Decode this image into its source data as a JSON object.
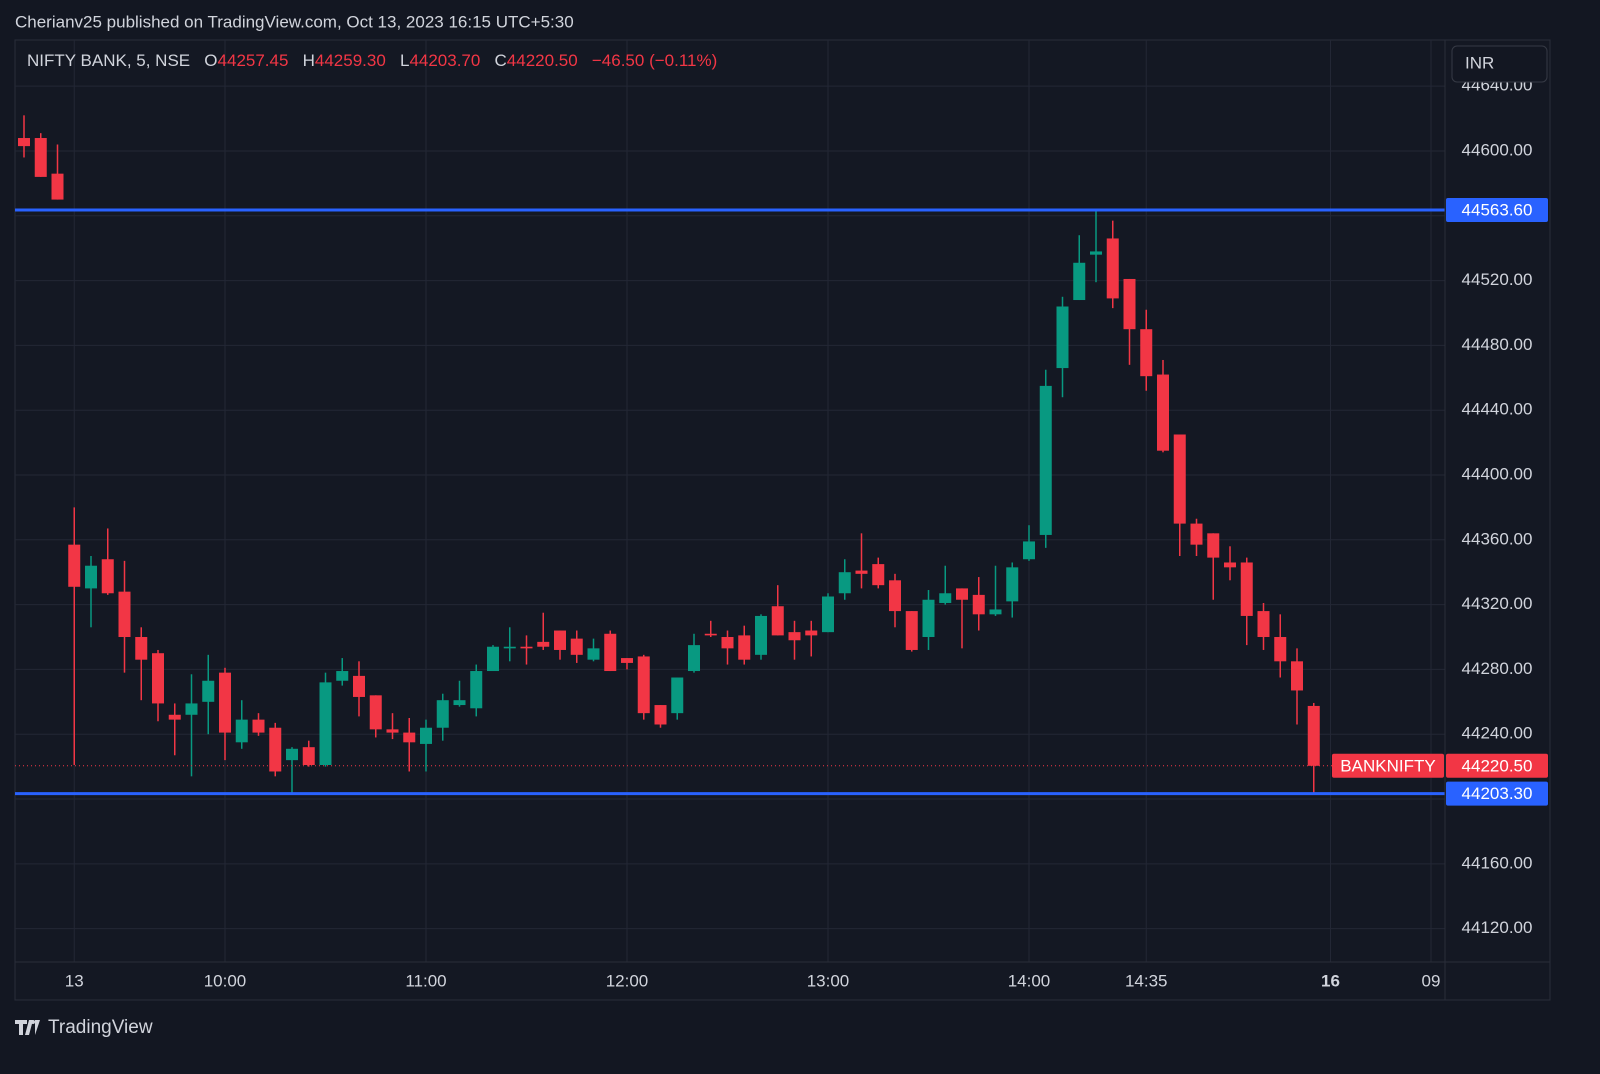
{
  "header": {
    "title": "Cherianv25 published on TradingView.com, Oct 13, 2023 16:15 UTC+5:30"
  },
  "chart_data": {
    "type": "candlestick",
    "legend": {
      "symbol": "NIFTY BANK, 5, NSE",
      "o_label": "O",
      "open": "44257.45",
      "h_label": "H",
      "high": "44259.30",
      "l_label": "L",
      "low": "44203.70",
      "c_label": "C",
      "close": "44220.50",
      "change": "−46.50 (−0.11%)"
    },
    "currency": "INR",
    "up_color": "#089981",
    "down_color": "#f23645",
    "categories": [
      null,
      null,
      null,
      "13",
      null,
      null,
      null,
      null,
      null,
      null,
      null,
      null,
      "10:00",
      null,
      null,
      null,
      null,
      null,
      null,
      null,
      null,
      null,
      null,
      null,
      "11:00",
      null,
      null,
      null,
      null,
      null,
      null,
      null,
      null,
      null,
      null,
      null,
      "12:00",
      null,
      null,
      null,
      null,
      null,
      null,
      null,
      null,
      null,
      null,
      null,
      "13:00",
      null,
      null,
      null,
      null,
      null,
      null,
      null,
      null,
      null,
      null,
      null,
      "14:00",
      null,
      null,
      null,
      null,
      null,
      null,
      "14:35",
      null,
      null,
      null,
      null,
      null,
      null,
      null,
      null,
      null,
      null,
      "16",
      null,
      null,
      null,
      null,
      null,
      "09"
    ],
    "open": [
      44608,
      44608,
      44586,
      44357,
      44330,
      44348,
      44328,
      44300,
      44290,
      44252,
      44252,
      44260,
      44278,
      44235,
      44249,
      44244,
      44224,
      44232,
      44221,
      44273,
      44276,
      44264,
      44243,
      44241,
      44234,
      44244,
      44258,
      44256,
      44279,
      44293,
      44294,
      44297,
      44304,
      44299,
      44286,
      44302,
      44287,
      44288,
      44258,
      44253,
      44279,
      44302,
      44300,
      44301,
      44289,
      44319,
      44303,
      44304,
      44303,
      44327,
      44341,
      44345,
      44335,
      44316,
      44300,
      44321,
      44330,
      44326,
      44314,
      44322,
      44348,
      44363,
      44466,
      44508,
      44536,
      44546,
      44521,
      44490,
      44462,
      44425,
      44370,
      44364,
      44346,
      44346,
      44316,
      44300,
      44285,
      44257.45,
      null,
      null,
      null,
      null,
      null,
      null,
      null
    ],
    "high": [
      44622,
      44611,
      44604,
      44380,
      44350,
      44367,
      44347,
      44306,
      44292,
      44259,
      44277,
      44289,
      44281,
      44261,
      44253,
      44247,
      44232,
      44236,
      44278,
      44287,
      44285,
      44264,
      44253,
      44250,
      44249,
      44265,
      44273,
      44283,
      44295,
      44306,
      44301,
      44315,
      44304,
      44304,
      44299,
      44304,
      44287,
      44289,
      44258,
      44275,
      44302,
      44310,
      44304,
      44307,
      44314,
      44332,
      44310,
      44310,
      44327,
      44348,
      44364,
      44349,
      44339,
      44316,
      44329,
      44344,
      44330,
      44337,
      44344,
      44346,
      44369,
      44465,
      44510,
      44548,
      44563.6,
      44557,
      44521,
      44502,
      44471,
      44425,
      44373,
      44364,
      44356,
      44349,
      44321,
      44314,
      44293,
      44259.3,
      null,
      null,
      null,
      null,
      null,
      null,
      null
    ],
    "low": [
      44596,
      44584,
      44570,
      44221,
      44306,
      44326,
      44278,
      44261,
      44248,
      44227,
      44214,
      44240,
      44224,
      44231,
      44239,
      44214,
      44204,
      44220,
      44220,
      44270,
      44251,
      44238,
      44237,
      44217,
      44217,
      44236,
      44257,
      44251,
      44279,
      44285,
      44283,
      44292,
      44286,
      44284,
      44285,
      44279,
      44280,
      44249,
      44244,
      44249,
      44278,
      44300,
      44283,
      44283,
      44286,
      44301,
      44286,
      44288,
      44303,
      44323,
      44330,
      44330,
      44306,
      44291,
      44292,
      44320,
      44293,
      44304,
      44313,
      44312,
      44347,
      44355,
      44448,
      44508,
      44519,
      44503,
      44468,
      44452,
      44414,
      44350,
      44350,
      44323,
      44335,
      44295,
      44292,
      44275,
      44246,
      44203.7,
      null,
      null,
      null,
      null,
      null,
      null,
      null
    ],
    "close": [
      44603,
      44584,
      44570,
      44331,
      44344,
      44327,
      44300,
      44286,
      44259,
      44249,
      44259,
      44273,
      44241,
      44249,
      44241,
      44217,
      44231,
      44221,
      44272,
      44279,
      44263,
      44243,
      44241,
      44235,
      44244,
      44261,
      44261,
      44279,
      44294,
      44294,
      44293,
      44294,
      44292,
      44289,
      44293,
      44279,
      44284,
      44253,
      44246,
      44275,
      44295,
      44301,
      44293,
      44286,
      44313,
      44301,
      44298,
      44301,
      44325,
      44340,
      44339,
      44332,
      44316,
      44292,
      44323,
      44327,
      44323,
      44314,
      44317,
      44343,
      44359,
      44455,
      44504,
      44531,
      44538,
      44509,
      44490,
      44461,
      44415,
      44370,
      44357,
      44349,
      44343,
      44313,
      44300,
      44285,
      44267,
      44220.5,
      null,
      null,
      null,
      null,
      null,
      null,
      null
    ],
    "ylim": [
      44099.4,
      44668.5
    ],
    "yticks": [
      {
        "value": 44120,
        "label": "44120.00"
      },
      {
        "value": 44160,
        "label": "44160.00"
      },
      {
        "value": 44200,
        "label": "44200.00"
      },
      {
        "value": 44240,
        "label": "44240.00"
      },
      {
        "value": 44280,
        "label": "44280.00"
      },
      {
        "value": 44320,
        "label": "44320.00"
      },
      {
        "value": 44360,
        "label": "44360.00"
      },
      {
        "value": 44400,
        "label": "44400.00"
      },
      {
        "value": 44440,
        "label": "44440.00"
      },
      {
        "value": 44480,
        "label": "44480.00"
      },
      {
        "value": 44520,
        "label": "44520.00"
      },
      {
        "value": 44560,
        "label": "44560.00"
      },
      {
        "value": 44600,
        "label": "44600.00"
      },
      {
        "value": 44640,
        "label": "44640.00"
      }
    ],
    "grid": true,
    "lines": [
      {
        "value": 44563.6,
        "label": "44563.60",
        "color": "#2962ff"
      },
      {
        "value": 44203.3,
        "label": "44203.30",
        "color": "#2962ff"
      }
    ],
    "last_price": {
      "name": "BANKNIFTY",
      "value": 44220.5,
      "label": "44220.50",
      "color": "#f23645"
    }
  },
  "footer": {
    "brand": "TradingView"
  }
}
